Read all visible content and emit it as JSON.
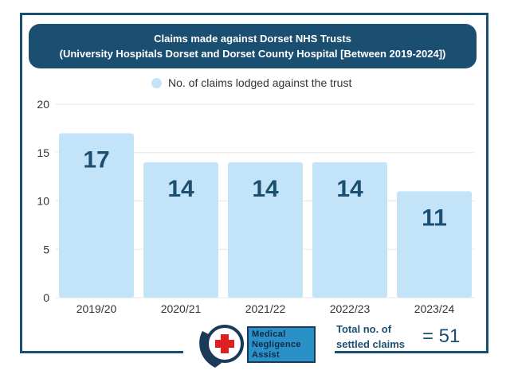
{
  "header": {
    "title_line1": "Claims made against Dorset NHS Trusts",
    "title_line2": "(University Hospitals Dorset and Dorset County Hospital [Between 2019-2024])"
  },
  "chart_data": {
    "type": "bar",
    "categories": [
      "2019/20",
      "2020/21",
      "2021/22",
      "2022/23",
      "2023/24"
    ],
    "series": [
      {
        "name": "No. of claims lodged against the trust",
        "values": [
          17,
          14,
          14,
          14,
          11
        ]
      }
    ],
    "data_labels": [
      "17",
      "14",
      "14",
      "14",
      "11"
    ],
    "ylim": [
      0,
      20
    ],
    "yticks": [
      0,
      5,
      10,
      15,
      20
    ],
    "grid": true,
    "legend_position": "top-center",
    "bar_color": "#c3e3f8",
    "label_color": "#1b4f72"
  },
  "logo": {
    "line1": "Medical",
    "line2": "Negligence",
    "line3": "Assist"
  },
  "total": {
    "label_line1": "Total no. of",
    "label_line2": "settled claims",
    "value": "= 51"
  },
  "colors": {
    "brand": "#1b4f72",
    "bar": "#c3e3f8",
    "logo_red": "#e02020",
    "logo_blue": "#2a90c7"
  }
}
